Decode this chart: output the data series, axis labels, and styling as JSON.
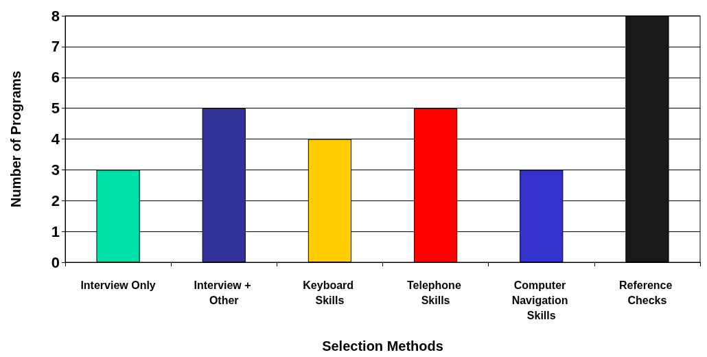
{
  "chart_data": {
    "type": "bar",
    "xlabel": "Selection Methods",
    "ylabel": "Number of Programs",
    "categories": [
      "Interview Only",
      "Interview + Other",
      "Keyboard Skills",
      "Telephone Skills",
      "Computer Navigation Skills",
      "Reference Checks"
    ],
    "values": [
      3,
      5,
      4,
      5,
      3,
      8
    ],
    "colors": [
      "#00e0a8",
      "#333399",
      "#ffcc00",
      "#ff0000",
      "#3333cc",
      "#1a1a1a"
    ],
    "ylim": [
      0,
      8
    ],
    "yticks": [
      0,
      1,
      2,
      3,
      4,
      5,
      6,
      7,
      8
    ],
    "grid": "y"
  }
}
